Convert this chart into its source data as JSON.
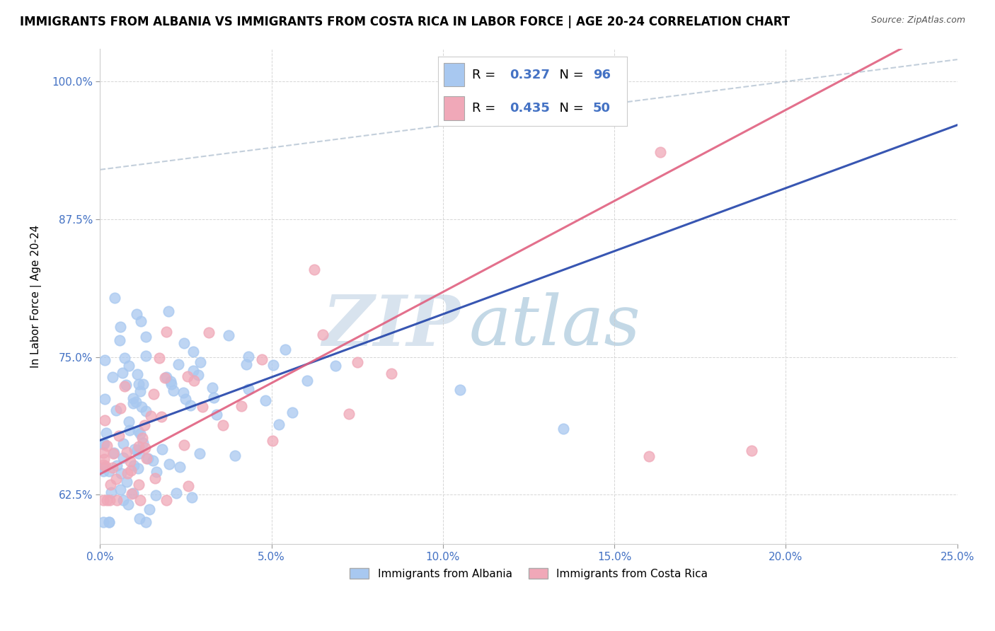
{
  "title": "IMMIGRANTS FROM ALBANIA VS IMMIGRANTS FROM COSTA RICA IN LABOR FORCE | AGE 20-24 CORRELATION CHART",
  "source": "Source: ZipAtlas.com",
  "ylabel": "In Labor Force | Age 20-24",
  "xlim": [
    0.0,
    0.25
  ],
  "ylim": [
    0.58,
    1.03
  ],
  "xtick_labels": [
    "0.0%",
    "5.0%",
    "10.0%",
    "15.0%",
    "20.0%",
    "25.0%"
  ],
  "xtick_values": [
    0.0,
    0.05,
    0.1,
    0.15,
    0.2,
    0.25
  ],
  "ytick_labels": [
    "62.5%",
    "75.0%",
    "87.5%",
    "100.0%"
  ],
  "ytick_values": [
    0.625,
    0.75,
    0.875,
    1.0
  ],
  "albania_color": "#a8c8f0",
  "costa_rica_color": "#f0a8b8",
  "albania_edge": "#7aaad8",
  "costa_rica_edge": "#e080a0",
  "albania_R": 0.327,
  "albania_N": 96,
  "costa_rica_R": 0.435,
  "costa_rica_N": 50,
  "watermark_zip": "ZIP",
  "watermark_atlas": "atlas",
  "watermark_zip_color": "#b8cce0",
  "watermark_atlas_color": "#7aaac8",
  "background_color": "#ffffff",
  "grid_color": "#cccccc",
  "title_fontsize": 12,
  "axis_label_fontsize": 11,
  "tick_label_fontsize": 11,
  "legend_fontsize": 13,
  "blue_line_color": "#2244aa",
  "pink_line_color": "#e06080",
  "gray_dash_color": "#aabbcc"
}
